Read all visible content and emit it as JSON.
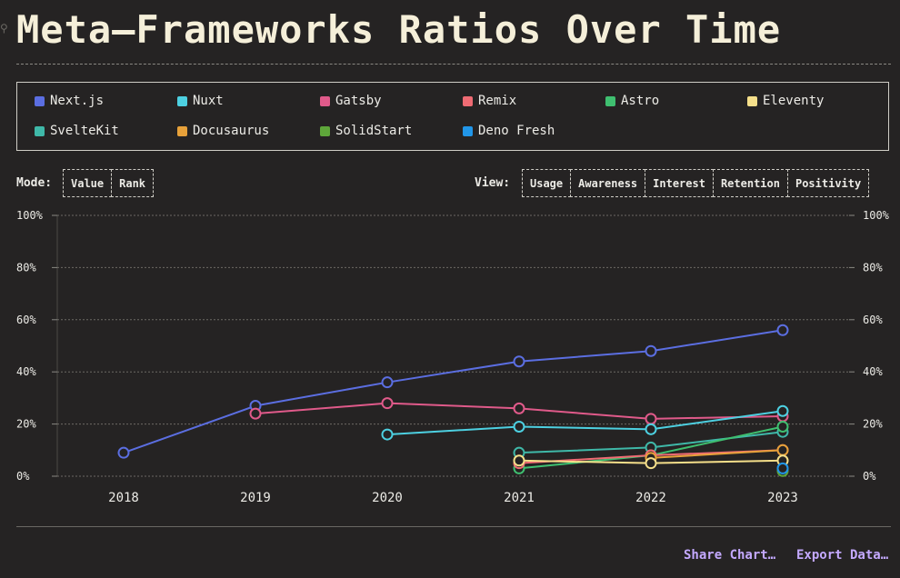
{
  "page": {
    "title": "Meta–Frameworks Ratios Over Time"
  },
  "legend": {
    "items": [
      {
        "label": "Next.js",
        "color": "#5b6ee1"
      },
      {
        "label": "Nuxt",
        "color": "#4dd0e1"
      },
      {
        "label": "Gatsby",
        "color": "#e05a8a"
      },
      {
        "label": "Remix",
        "color": "#ef6b73"
      },
      {
        "label": "Astro",
        "color": "#3fbf70"
      },
      {
        "label": "Eleventy",
        "color": "#f5df8a"
      },
      {
        "label": "SvelteKit",
        "color": "#3fb8a8"
      },
      {
        "label": "Docusaurus",
        "color": "#e7a13a"
      },
      {
        "label": "SolidStart",
        "color": "#5ea63a"
      },
      {
        "label": "Deno Fresh",
        "color": "#2196e8"
      }
    ]
  },
  "controls": {
    "mode_label": "Mode:",
    "mode_buttons": [
      "Value",
      "Rank"
    ],
    "view_label": "View:",
    "view_buttons": [
      "Usage",
      "Awareness",
      "Interest",
      "Retention",
      "Positivity"
    ]
  },
  "actions": {
    "share": "Share Chart…",
    "export": "Export Data…"
  },
  "chart_data": {
    "type": "line",
    "x": [
      "2018",
      "2019",
      "2020",
      "2021",
      "2022",
      "2023"
    ],
    "ylim": [
      0,
      100
    ],
    "yticks": [
      "0%",
      "20%",
      "40%",
      "60%",
      "80%",
      "100%"
    ],
    "grid": true,
    "series": [
      {
        "name": "Next.js",
        "color": "#5b6ee1",
        "values": [
          9,
          27,
          36,
          44,
          48,
          56
        ]
      },
      {
        "name": "Gatsby",
        "color": "#e05a8a",
        "values": [
          null,
          24,
          28,
          26,
          22,
          23
        ]
      },
      {
        "name": "Nuxt",
        "color": "#4dd0e1",
        "values": [
          null,
          null,
          16,
          19,
          18,
          25
        ]
      },
      {
        "name": "SvelteKit",
        "color": "#3fb8a8",
        "values": [
          null,
          null,
          null,
          9,
          11,
          17
        ]
      },
      {
        "name": "Astro",
        "color": "#3fbf70",
        "values": [
          null,
          null,
          null,
          3,
          8,
          19
        ]
      },
      {
        "name": "Remix",
        "color": "#ef6b73",
        "values": [
          null,
          null,
          null,
          5,
          8,
          10
        ]
      },
      {
        "name": "Docusaurus",
        "color": "#e7a13a",
        "values": [
          null,
          null,
          null,
          null,
          7,
          10
        ]
      },
      {
        "name": "Eleventy",
        "color": "#f5df8a",
        "values": [
          null,
          null,
          null,
          6,
          5,
          6
        ]
      },
      {
        "name": "SolidStart",
        "color": "#5ea63a",
        "values": [
          null,
          null,
          null,
          null,
          null,
          2
        ]
      },
      {
        "name": "Deno Fresh",
        "color": "#2196e8",
        "values": [
          null,
          null,
          null,
          null,
          null,
          3
        ]
      }
    ]
  }
}
